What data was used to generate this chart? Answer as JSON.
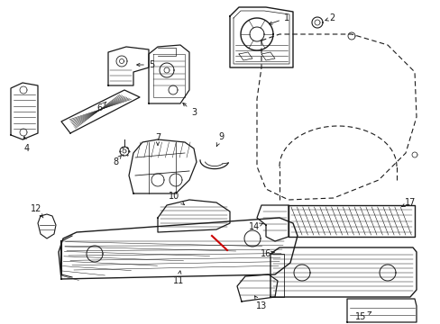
{
  "background_color": "#ffffff",
  "line_color": "#1a1a1a",
  "red_color": "#cc0000",
  "fig_width": 4.89,
  "fig_height": 3.6,
  "dpi": 100,
  "label_fontsize": 7.0
}
